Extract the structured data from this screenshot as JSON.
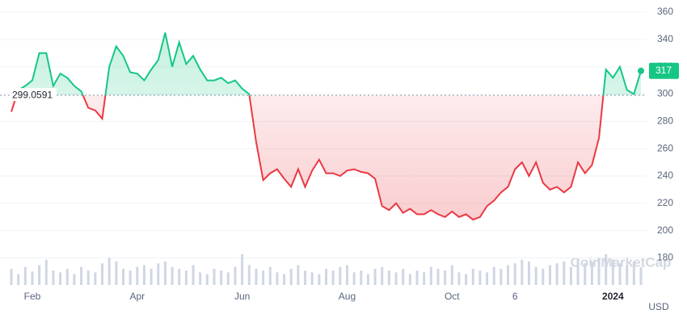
{
  "chart_data": {
    "type": "line",
    "categories": [
      null,
      null,
      null,
      "Feb",
      null,
      null,
      null,
      null,
      null,
      null,
      null,
      null,
      null,
      null,
      null,
      null,
      null,
      null,
      "Apr",
      null,
      null,
      null,
      null,
      null,
      null,
      null,
      null,
      null,
      null,
      null,
      null,
      null,
      null,
      "Jun",
      null,
      null,
      null,
      null,
      null,
      null,
      null,
      null,
      null,
      null,
      null,
      null,
      null,
      null,
      "Aug",
      null,
      null,
      null,
      null,
      null,
      null,
      null,
      null,
      null,
      null,
      null,
      null,
      null,
      null,
      "Oct",
      null,
      null,
      null,
      null,
      null,
      null,
      null,
      null,
      "6",
      null,
      null,
      null,
      null,
      null,
      null,
      null,
      null,
      null,
      null,
      null,
      null,
      null,
      "2024",
      null,
      null,
      null,
      null
    ],
    "values": [
      287,
      303,
      306,
      310,
      330,
      330,
      306,
      315,
      312,
      306,
      302,
      290,
      288,
      282,
      320,
      335,
      328,
      316,
      315,
      310,
      318,
      325,
      345,
      320,
      338,
      322,
      328,
      318,
      310,
      310,
      312,
      308,
      310,
      304,
      300,
      265,
      237,
      242,
      245,
      238,
      232,
      245,
      232,
      244,
      252,
      242,
      242,
      240,
      244,
      245,
      243,
      242,
      238,
      218,
      215,
      220,
      213,
      216,
      212,
      212,
      215,
      212,
      210,
      214,
      210,
      212,
      208,
      210,
      218,
      222,
      228,
      232,
      245,
      250,
      240,
      250,
      235,
      230,
      232,
      228,
      232,
      250,
      242,
      248,
      268,
      318,
      312,
      320,
      303,
      300,
      317
    ],
    "volumes": [
      18,
      12,
      20,
      15,
      22,
      28,
      16,
      14,
      18,
      12,
      20,
      16,
      14,
      24,
      30,
      26,
      18,
      16,
      20,
      22,
      18,
      24,
      26,
      20,
      18,
      16,
      22,
      14,
      12,
      18,
      16,
      14,
      20,
      34,
      22,
      18,
      16,
      20,
      14,
      12,
      18,
      22,
      16,
      14,
      12,
      18,
      16,
      20,
      22,
      14,
      16,
      12,
      18,
      20,
      16,
      14,
      18,
      12,
      16,
      14,
      20,
      18,
      16,
      22,
      14,
      12,
      18,
      16,
      14,
      20,
      18,
      22,
      24,
      28,
      26,
      20,
      18,
      22,
      24,
      26,
      20,
      28,
      24,
      26,
      30,
      34,
      28,
      24,
      22,
      26,
      20
    ],
    "baseline": 299.0591,
    "up_color": "#16c784",
    "down_color": "#ea3943",
    "ylim": [
      159,
      363
    ],
    "yticks": [
      180,
      200,
      220,
      240,
      260,
      280,
      300,
      320,
      340,
      360
    ],
    "grid": true,
    "y_unit": "USD",
    "watermark": "CoinMarketCap"
  }
}
